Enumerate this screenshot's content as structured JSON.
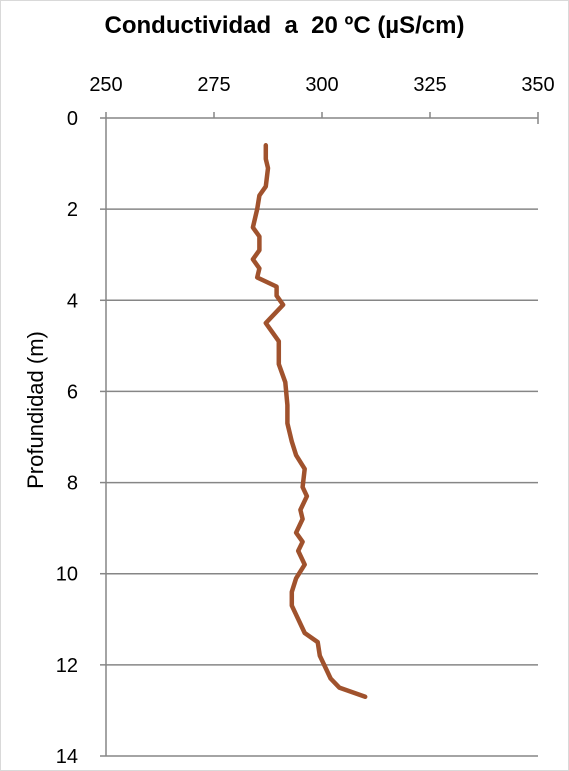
{
  "chart_data": {
    "type": "line",
    "title": "Conductividad  a  20 ºC (µS/cm)",
    "xlabel": "",
    "ylabel": "Profundidad (m)",
    "x_axis_position": "top",
    "y_axis_inverted": true,
    "xlim": [
      250,
      350
    ],
    "ylim": [
      0,
      14
    ],
    "x_ticks": [
      "250",
      "275",
      "300",
      "325",
      "350"
    ],
    "y_ticks": [
      "0",
      "2",
      "4",
      "6",
      "8",
      "10",
      "12",
      "14"
    ],
    "grid": "horizontal",
    "series": [
      {
        "name": "",
        "color": "#a0522d",
        "points": [
          [
            287,
            0.6
          ],
          [
            287,
            0.9
          ],
          [
            287.5,
            1.1
          ],
          [
            287,
            1.5
          ],
          [
            285.5,
            1.7
          ],
          [
            285,
            2.0
          ],
          [
            284,
            2.4
          ],
          [
            285.5,
            2.6
          ],
          [
            285.5,
            2.9
          ],
          [
            284,
            3.1
          ],
          [
            285.5,
            3.3
          ],
          [
            285,
            3.5
          ],
          [
            289.5,
            3.7
          ],
          [
            289.5,
            3.9
          ],
          [
            291,
            4.1
          ],
          [
            287,
            4.5
          ],
          [
            290,
            4.9
          ],
          [
            290,
            5.4
          ],
          [
            291.5,
            5.8
          ],
          [
            292,
            6.3
          ],
          [
            292,
            6.7
          ],
          [
            293,
            7.1
          ],
          [
            294,
            7.4
          ],
          [
            296,
            7.7
          ],
          [
            295.5,
            8.1
          ],
          [
            296.5,
            8.3
          ],
          [
            295,
            8.6
          ],
          [
            295.5,
            8.8
          ],
          [
            294,
            9.1
          ],
          [
            295.5,
            9.3
          ],
          [
            294.5,
            9.5
          ],
          [
            296,
            9.8
          ],
          [
            294,
            10.1
          ],
          [
            293,
            10.4
          ],
          [
            293,
            10.7
          ],
          [
            294,
            10.9
          ],
          [
            296,
            11.3
          ],
          [
            299,
            11.5
          ],
          [
            299.5,
            11.8
          ],
          [
            301,
            12.1
          ],
          [
            302,
            12.3
          ],
          [
            304,
            12.5
          ],
          [
            310,
            12.7
          ]
        ]
      }
    ]
  }
}
